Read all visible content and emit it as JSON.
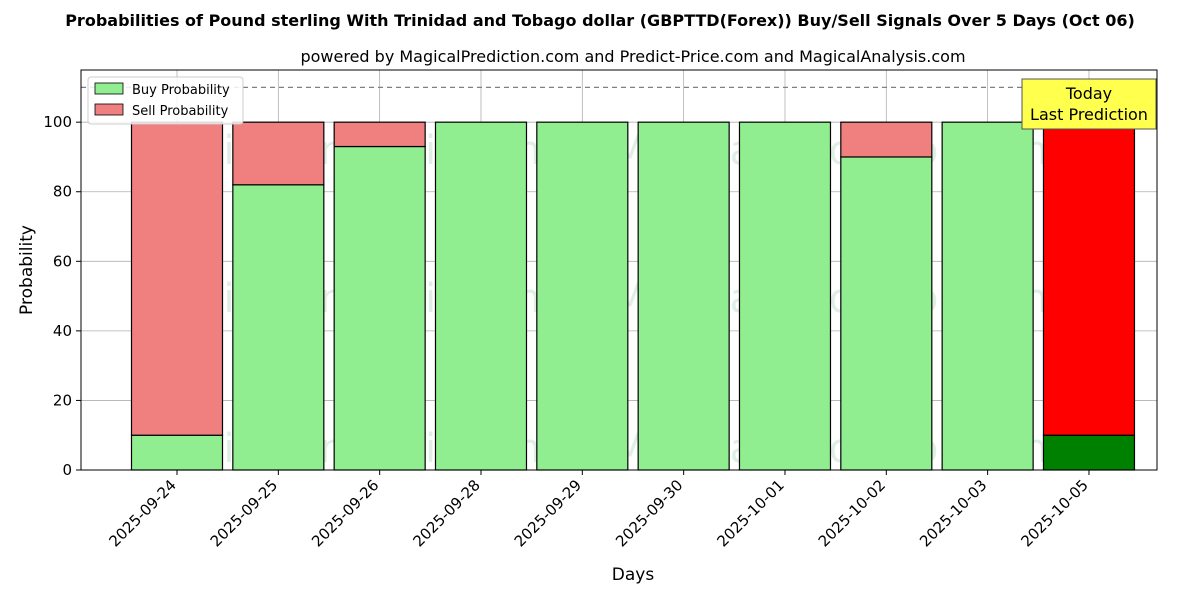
{
  "chart_data": {
    "type": "bar",
    "title": "Probabilities of Pound sterling With Trinidad and Tobago dollar (GBPTTD(Forex)) Buy/Sell Signals Over 5 Days (Oct 06)",
    "subtitle": "powered by MagicalPrediction.com and Predict-Price.com and MagicalAnalysis.com",
    "xlabel": "Days",
    "ylabel": "Probability",
    "ylim": [
      0,
      115
    ],
    "yticks": [
      0,
      20,
      40,
      60,
      80,
      100
    ],
    "grid": true,
    "stacked": true,
    "reference_line": 110,
    "legend_position": "top-left",
    "categories": [
      "2025-09-24",
      "2025-09-25",
      "2025-09-26",
      "2025-09-28",
      "2025-09-29",
      "2025-09-30",
      "2025-10-01",
      "2025-10-02",
      "2025-10-03",
      "2025-10-05"
    ],
    "series": [
      {
        "name": "Buy Probability",
        "values": [
          10,
          82,
          93,
          100,
          100,
          100,
          100,
          90,
          100,
          10
        ],
        "color": "#90ee90",
        "last_color": "#008000"
      },
      {
        "name": "Sell Probability",
        "values": [
          90,
          18,
          7,
          0,
          0,
          0,
          0,
          10,
          0,
          90
        ],
        "color": "#f08080",
        "last_color": "#ff0000"
      }
    ],
    "annotation": {
      "lines": [
        "Today",
        "Last Prediction"
      ],
      "color": "#ffff4d"
    },
    "watermarks": [
      "MagicalAnalysis.com",
      "MagicalPrediction.com"
    ]
  }
}
